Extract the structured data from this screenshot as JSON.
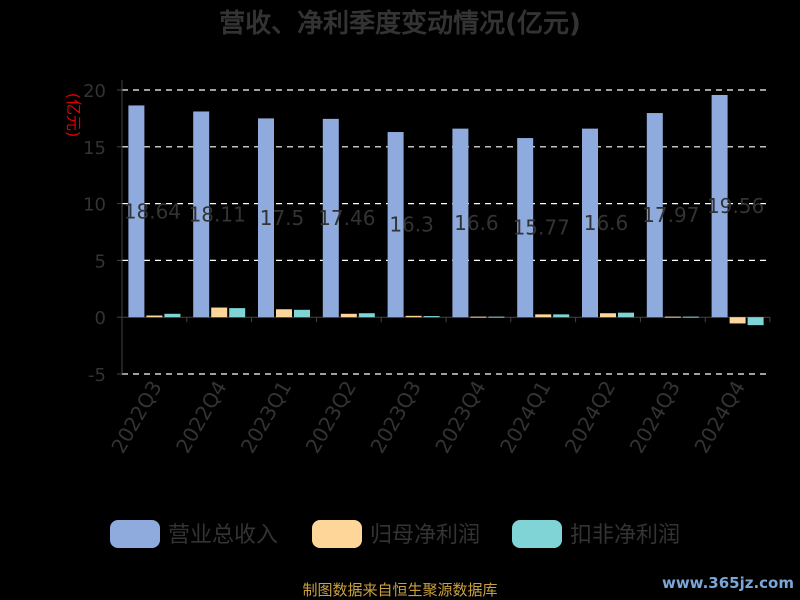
{
  "chart_data": {
    "type": "bar",
    "title": "营收、净利季度变动情况(亿元)",
    "ylabel": "(亿元)",
    "ylim": [
      -5,
      20
    ],
    "yticks": [
      20,
      15,
      10,
      5,
      0,
      -5
    ],
    "grid": true,
    "legend_position": "bottom",
    "categories": [
      "2022Q3",
      "2022Q4",
      "2023Q1",
      "2023Q2",
      "2023Q3",
      "2023Q4",
      "2024Q1",
      "2024Q2",
      "2024Q3",
      "2024Q4"
    ],
    "series": [
      {
        "name": "营业总收入",
        "color": "#8faadc",
        "values": [
          18.64,
          18.11,
          17.5,
          17.46,
          16.3,
          16.6,
          15.77,
          16.6,
          17.97,
          19.56
        ],
        "labels": [
          "18.64",
          "18.11",
          "17.5",
          "17.46",
          "16.3",
          "16.6",
          "15.77",
          "16.6",
          "17.97",
          "19.56"
        ]
      },
      {
        "name": "归母净利润",
        "color": "#ffd699",
        "values": [
          0.15,
          0.85,
          0.7,
          0.3,
          0.12,
          0.05,
          0.25,
          0.35,
          0.05,
          -0.55
        ]
      },
      {
        "name": "扣非净利润",
        "color": "#80d4d6",
        "values": [
          0.3,
          0.8,
          0.65,
          0.35,
          0.1,
          0.05,
          0.25,
          0.4,
          0.05,
          -0.7
        ]
      }
    ]
  },
  "footer": {
    "source": "制图数据来自恒生聚源数据库",
    "watermark": "www.365jz.com"
  }
}
